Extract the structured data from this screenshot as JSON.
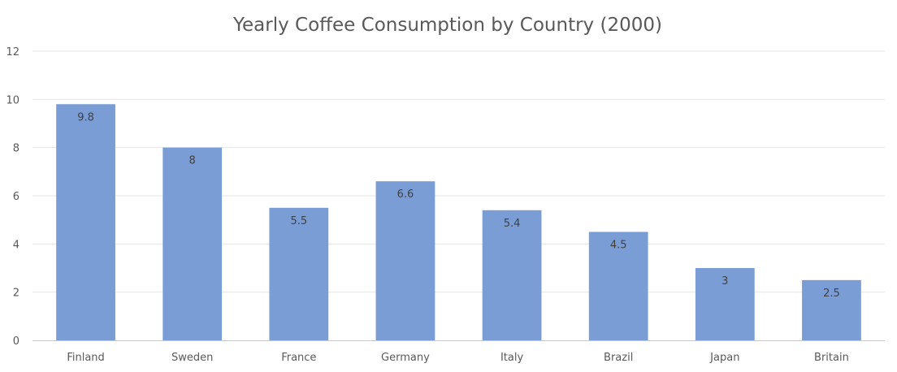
{
  "chart_data": {
    "type": "bar",
    "title": "Yearly Coffee Consumption by Country (2000)",
    "categories": [
      "Finland",
      "Sweden",
      "France",
      "Germany",
      "Italy",
      "Brazil",
      "Japan",
      "Britain"
    ],
    "values": [
      9.8,
      8,
      5.5,
      6.6,
      5.4,
      4.5,
      3,
      2.5
    ],
    "data_labels": [
      "9.8",
      "8",
      "5.5",
      "6.6",
      "5.4",
      "4.5",
      "3",
      "2.5"
    ],
    "xlabel": "",
    "ylabel": "",
    "ylim": [
      0,
      12
    ],
    "yticks": [
      "0",
      "2",
      "4",
      "6",
      "8",
      "10",
      "12"
    ],
    "grid": true,
    "legend": "none",
    "bar_color": "#7b9dd6"
  }
}
